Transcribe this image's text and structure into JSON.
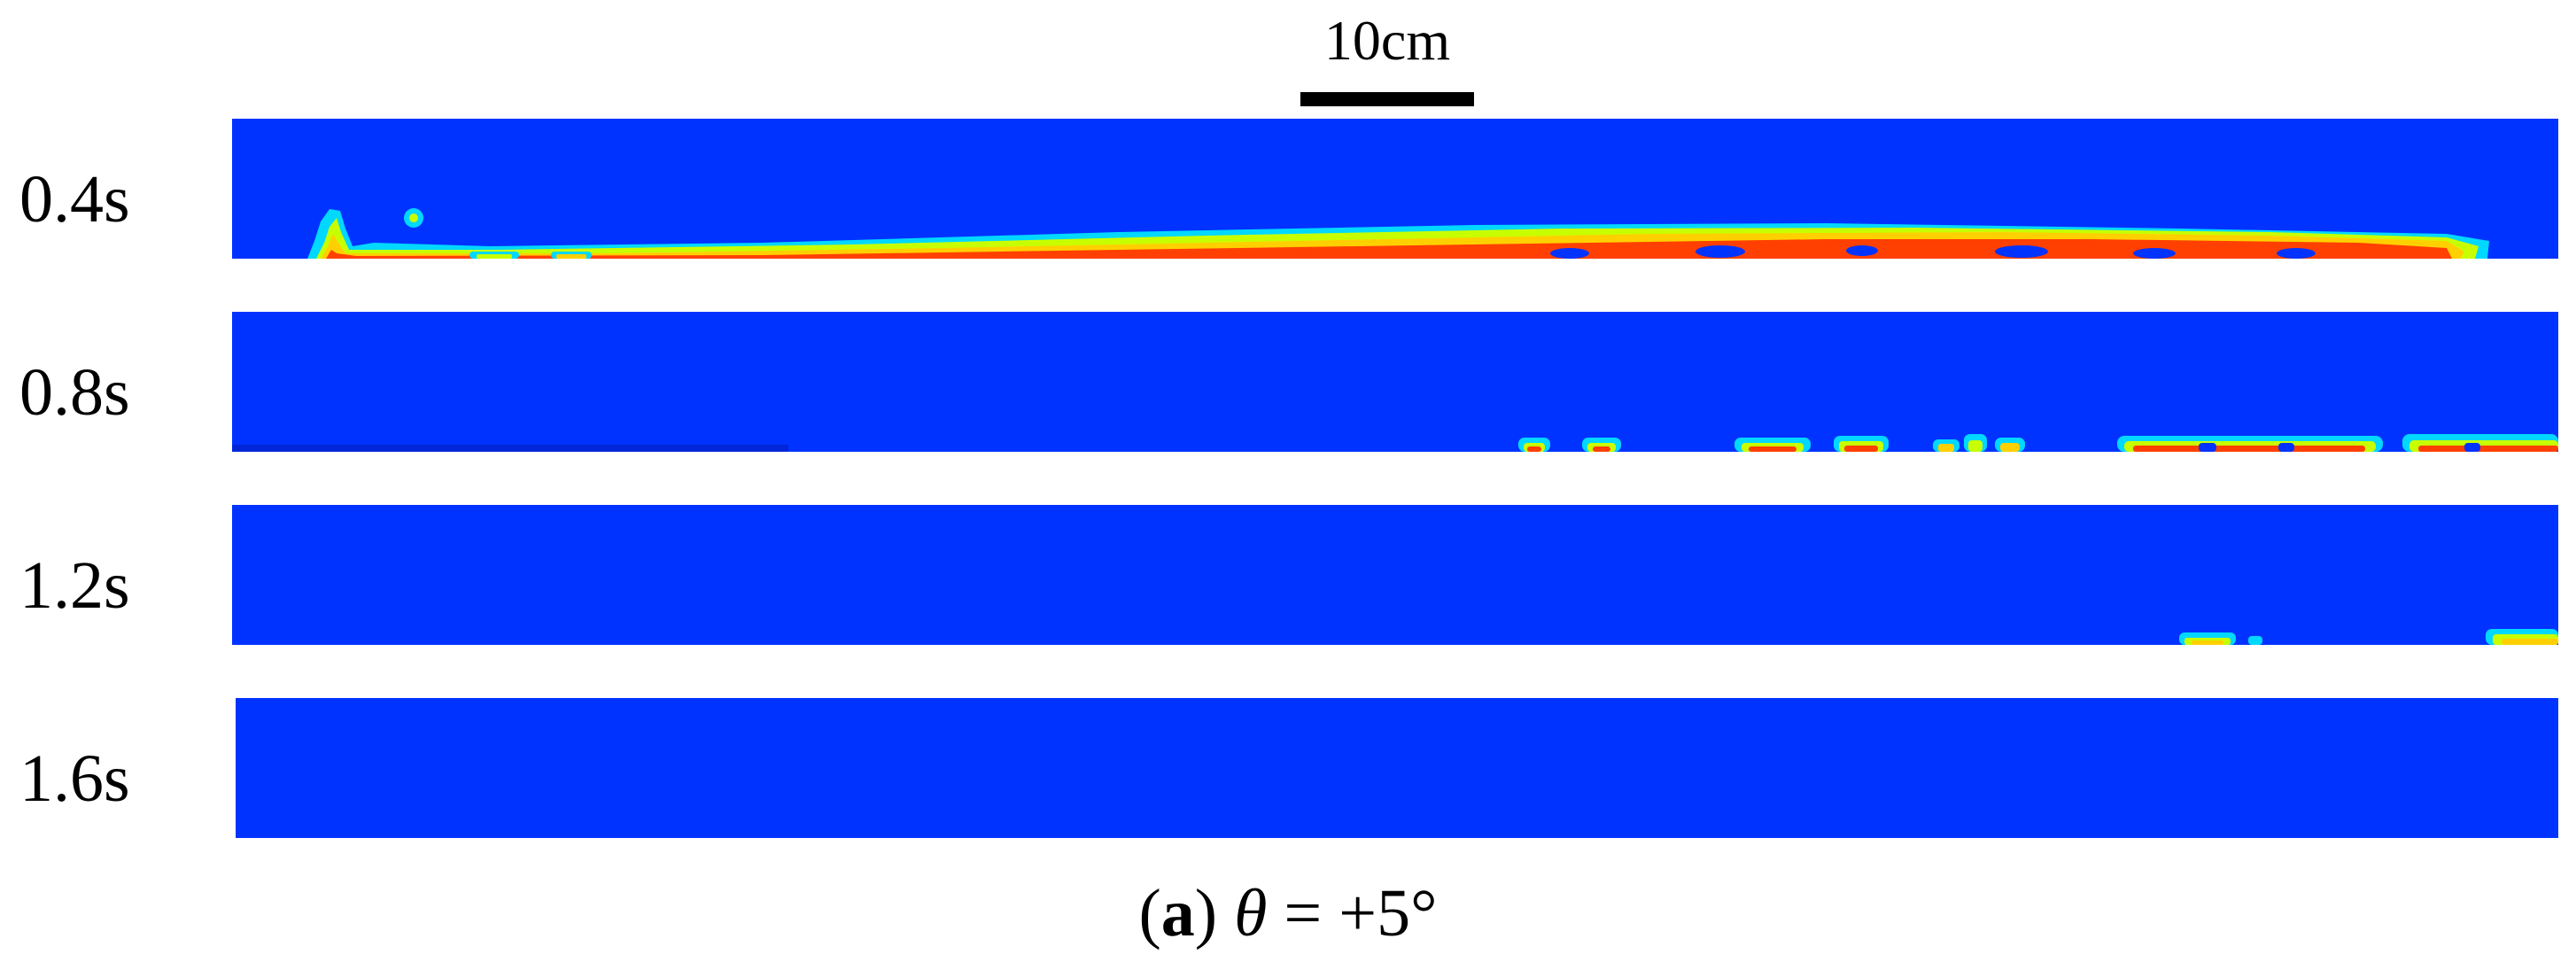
{
  "scale_bar": {
    "label": "10cm"
  },
  "colors": {
    "background_phase": "#0033ff",
    "interface_outer": "#00d8ff",
    "interface_mid": "#c8ff00",
    "interface_inner": "#ffd000",
    "core_phase": "#ff4000"
  },
  "panels": [
    {
      "time": "0.4s"
    },
    {
      "time": "0.8s"
    },
    {
      "time": "1.2s"
    },
    {
      "time": "1.6s"
    }
  ],
  "caption": {
    "open": "(",
    "letter": "a",
    "close": ")",
    "symbol": "θ",
    "text": " = +5°"
  }
}
